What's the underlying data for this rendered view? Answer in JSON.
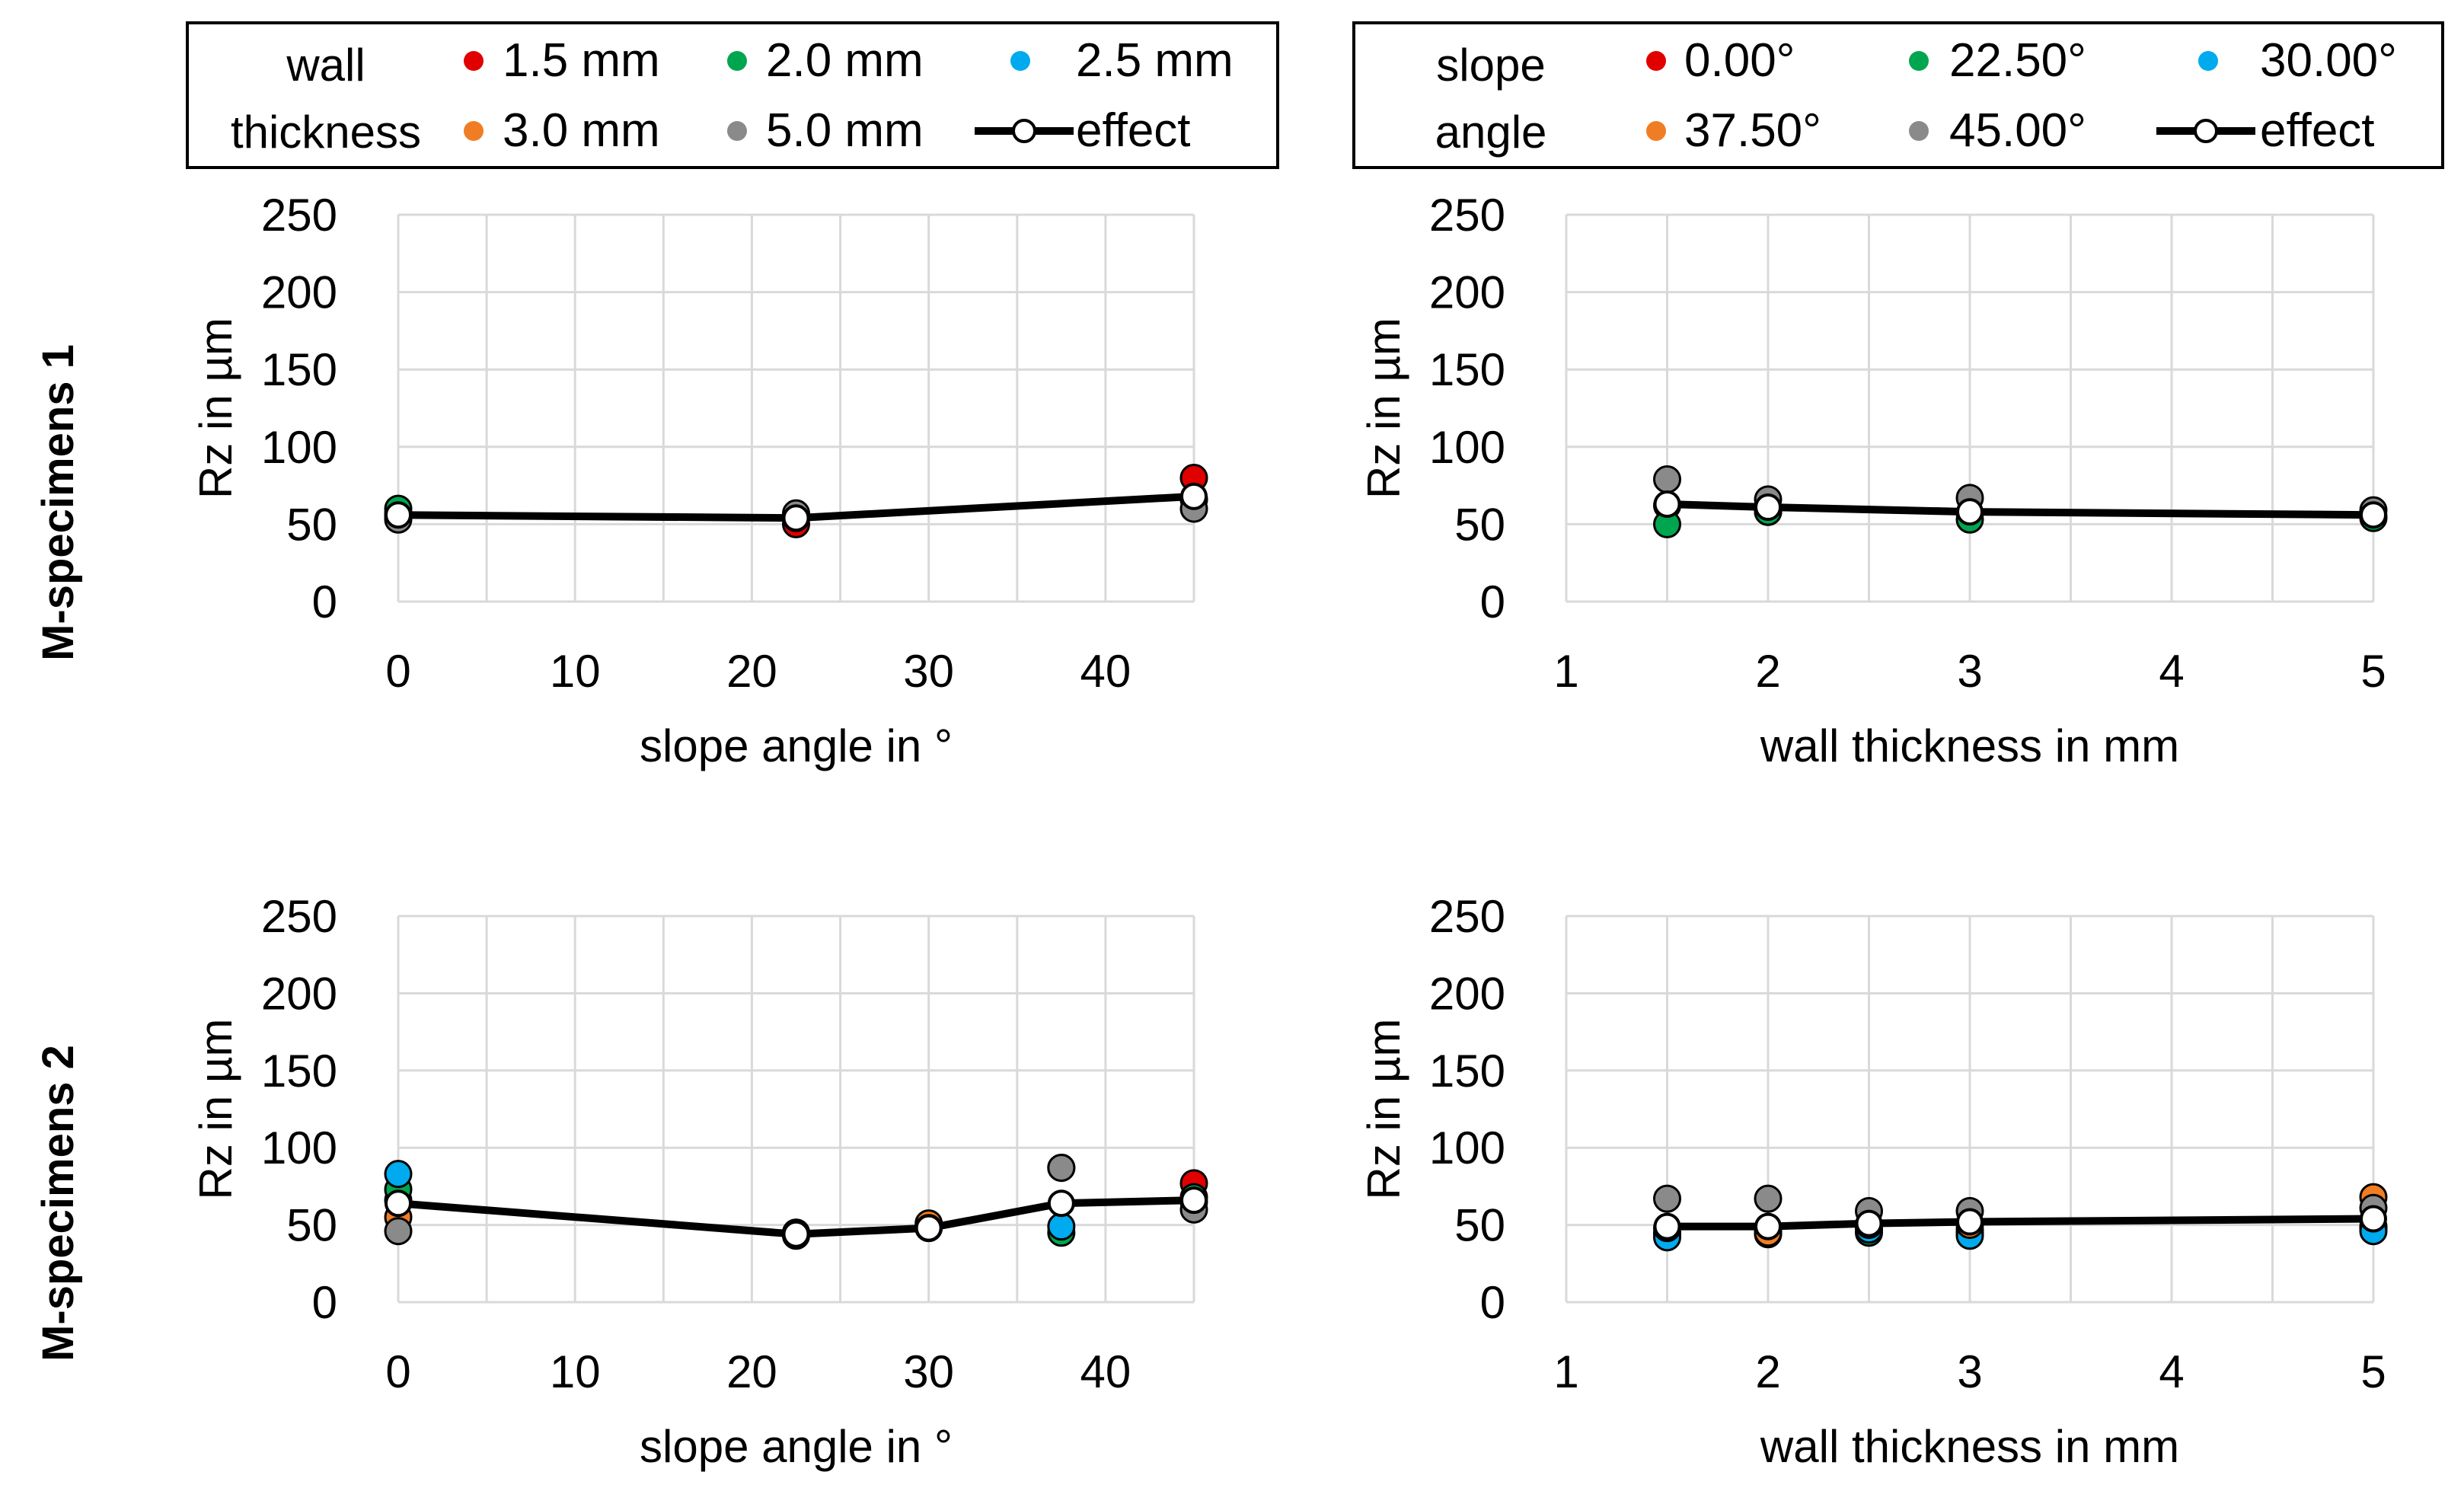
{
  "colors": {
    "red": "#e00000",
    "green": "#00a64f",
    "blue": "#00aaee",
    "orange": "#f07d24",
    "gray": "#8a8a8a",
    "effect_line": "#000000",
    "effect_marker": "#ffffff",
    "grid": "#d9d9d9"
  },
  "legends": [
    {
      "title_lines": [
        "wall",
        "thickness"
      ],
      "entries": [
        {
          "label": "1.5 mm",
          "color": "#e00000"
        },
        {
          "label": "2.0 mm",
          "color": "#00a64f"
        },
        {
          "label": "2.5 mm",
          "color": "#00aaee"
        },
        {
          "label": "3.0 mm",
          "color": "#f07d24"
        },
        {
          "label": "5.0 mm",
          "color": "#8a8a8a"
        },
        {
          "label": "effect",
          "color": "effect"
        }
      ]
    },
    {
      "title_lines": [
        "slope",
        "angle"
      ],
      "entries": [
        {
          "label": "0.00°",
          "color": "#e00000"
        },
        {
          "label": "22.50°",
          "color": "#00a64f"
        },
        {
          "label": "30.00°",
          "color": "#00aaee"
        },
        {
          "label": "37.50°",
          "color": "#f07d24"
        },
        {
          "label": "45.00°",
          "color": "#8a8a8a"
        },
        {
          "label": "effect",
          "color": "effect"
        }
      ]
    }
  ],
  "row_labels": [
    "M-specimens 1",
    "M-specimens 2"
  ],
  "chart_data": [
    {
      "type": "scatter",
      "row": "M-specimens 1",
      "xlabel": "slope angle in °",
      "ylabel": "Rz in µm",
      "xlim": [
        0,
        45
      ],
      "xticks": [
        0,
        10,
        20,
        30,
        40
      ],
      "ylim": [
        0,
        250
      ],
      "yticks": [
        0,
        50,
        100,
        150,
        200,
        250
      ],
      "series": [
        {
          "name": "1.5 mm",
          "color": "#e00000",
          "x": [
            0,
            22.5,
            45
          ],
          "y": [
            57,
            50,
            80
          ]
        },
        {
          "name": "2.0 mm",
          "color": "#00a64f",
          "x": [
            0,
            22.5,
            45
          ],
          "y": [
            60,
            55,
            66
          ]
        },
        {
          "name": "3.0 mm",
          "color": "#f07d24",
          "x": [
            0,
            22.5,
            45
          ],
          "y": [
            55,
            54,
            66
          ]
        },
        {
          "name": "5.0 mm",
          "color": "#8a8a8a",
          "x": [
            0,
            22.5,
            45
          ],
          "y": [
            53,
            57,
            60
          ]
        }
      ],
      "effect": {
        "x": [
          0,
          22.5,
          45
        ],
        "y": [
          56,
          54,
          68
        ]
      }
    },
    {
      "type": "scatter",
      "row": "M-specimens 1",
      "xlabel": "wall thickness in mm",
      "ylabel": "Rz in µm",
      "xlim": [
        1,
        5
      ],
      "xticks": [
        1,
        2,
        3,
        4,
        5
      ],
      "ylim": [
        0,
        250
      ],
      "yticks": [
        0,
        50,
        100,
        150,
        200,
        250
      ],
      "series": [
        {
          "name": "0.00°",
          "color": "#e00000",
          "x": [
            1.5,
            2,
            3,
            5
          ],
          "y": [
            62,
            58,
            57,
            55
          ]
        },
        {
          "name": "22.50°",
          "color": "#00a64f",
          "x": [
            1.5,
            2,
            3,
            5
          ],
          "y": [
            50,
            58,
            53,
            54
          ]
        },
        {
          "name": "45.00°",
          "color": "#8a8a8a",
          "x": [
            1.5,
            2,
            3,
            5
          ],
          "y": [
            79,
            66,
            67,
            59
          ]
        }
      ],
      "effect": {
        "x": [
          1.5,
          2,
          3,
          5
        ],
        "y": [
          63,
          61,
          58,
          56
        ]
      }
    },
    {
      "type": "scatter",
      "row": "M-specimens 2",
      "xlabel": "slope angle in °",
      "ylabel": "Rz in µm",
      "xlim": [
        0,
        45
      ],
      "xticks": [
        0,
        10,
        20,
        30,
        40
      ],
      "ylim": [
        0,
        250
      ],
      "yticks": [
        0,
        50,
        100,
        150,
        200,
        250
      ],
      "series": [
        {
          "name": "1.5 mm",
          "color": "#e00000",
          "x": [
            0,
            22.5,
            37.5,
            45
          ],
          "y": [
            66,
            43,
            87,
            77
          ]
        },
        {
          "name": "2.0 mm",
          "color": "#00a64f",
          "x": [
            0,
            22.5,
            37.5,
            45
          ],
          "y": [
            73,
            45,
            45,
            68
          ]
        },
        {
          "name": "2.5 mm",
          "color": "#00aaee",
          "x": [
            0,
            30,
            37.5
          ],
          "y": [
            83,
            49,
            49
          ]
        },
        {
          "name": "3.0 mm",
          "color": "#f07d24",
          "x": [
            0,
            22.5,
            30,
            45
          ],
          "y": [
            55,
            44,
            51,
            65
          ]
        },
        {
          "name": "5.0 mm",
          "color": "#8a8a8a",
          "x": [
            0,
            22.5,
            30,
            37.5,
            45
          ],
          "y": [
            46,
            45,
            48,
            87,
            60
          ]
        }
      ],
      "effect": {
        "x": [
          0,
          22.5,
          30,
          37.5,
          45
        ],
        "y": [
          64,
          44,
          48,
          64,
          66
        ]
      }
    },
    {
      "type": "scatter",
      "row": "M-specimens 2",
      "xlabel": "wall thickness in mm",
      "ylabel": "Rz in µm",
      "xlim": [
        1,
        5
      ],
      "xticks": [
        1,
        2,
        3,
        4,
        5
      ],
      "ylim": [
        0,
        250
      ],
      "yticks": [
        0,
        50,
        100,
        150,
        200,
        250
      ],
      "series": [
        {
          "name": "0.00°",
          "color": "#e00000",
          "x": [
            1.5,
            2,
            2.5,
            3,
            5
          ],
          "y": [
            45,
            46,
            47,
            47,
            49
          ]
        },
        {
          "name": "22.50°",
          "color": "#00a64f",
          "x": [
            1.5,
            2,
            2.5,
            3,
            5
          ],
          "y": [
            44,
            44,
            45,
            45,
            48
          ]
        },
        {
          "name": "30.00°",
          "color": "#00aaee",
          "x": [
            1.5,
            2,
            2.5,
            3,
            5
          ],
          "y": [
            42,
            45,
            47,
            43,
            46
          ]
        },
        {
          "name": "37.50°",
          "color": "#f07d24",
          "x": [
            1.5,
            2,
            2.5,
            3,
            5
          ],
          "y": [
            48,
            45,
            50,
            50,
            68
          ]
        },
        {
          "name": "45.00°",
          "color": "#8a8a8a",
          "x": [
            1.5,
            2,
            2.5,
            3,
            5
          ],
          "y": [
            67,
            67,
            59,
            59,
            61
          ]
        }
      ],
      "effect": {
        "x": [
          1.5,
          2,
          2.5,
          3,
          5
        ],
        "y": [
          49,
          49,
          51,
          52,
          54
        ]
      }
    }
  ]
}
